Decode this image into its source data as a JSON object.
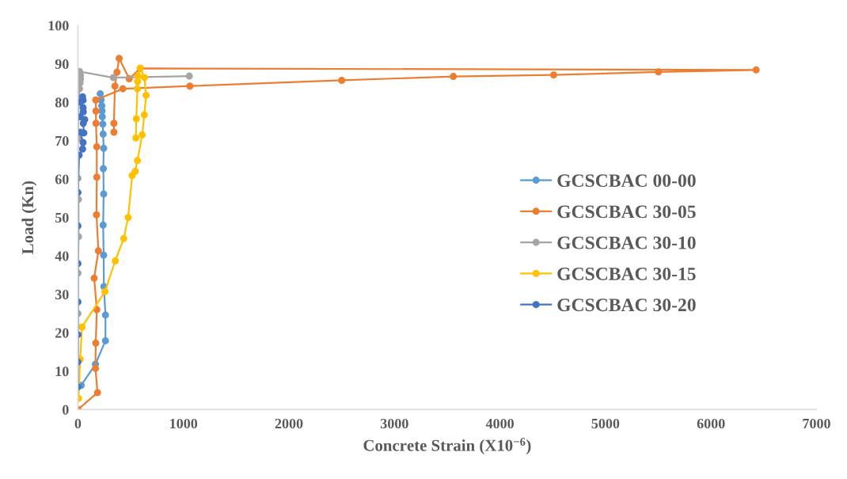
{
  "chart_data": {
    "type": "line",
    "xlabel": "Concrete Strain (X10$^{−6}$)",
    "ylabel": "Load (Kn)",
    "xlim": [
      0,
      7000
    ],
    "xticks": [
      0,
      1000,
      2000,
      3000,
      4000,
      5000,
      6000,
      7000
    ],
    "ylim": [
      0,
      100
    ],
    "yticks": [
      0,
      10,
      20,
      30,
      40,
      50,
      60,
      70,
      80,
      90,
      100
    ],
    "grid": false,
    "legend": "right",
    "marker": "circle",
    "line_style": "solid",
    "series": [
      {
        "name": "GCSCBAC 00-00",
        "color": "#5b9bd5",
        "x": [
          31,
          166,
          261,
          261,
          246,
          244,
          239,
          244,
          241,
          244,
          239,
          236,
          231,
          229,
          226,
          219,
          211
        ],
        "values": [
          6.3,
          11.8,
          17.9,
          24.6,
          32.0,
          40.2,
          48.0,
          56.1,
          62.7,
          68.0,
          71.7,
          74.3,
          76.2,
          77.7,
          79.1,
          80.6,
          82.2
        ]
      },
      {
        "name": "GCSCBAC 30-05",
        "color": "#ed7d31",
        "x": [
          0,
          186,
          166,
          169,
          179,
          154,
          194,
          176,
          179,
          179,
          171,
          171,
          169,
          426,
          1061,
          2500,
          3558,
          4509,
          5502,
          6428,
          591,
          486,
          391,
          370,
          351,
          341,
          341
        ],
        "values": [
          0,
          4.4,
          10.7,
          17.3,
          26.0,
          34.2,
          41.3,
          50.7,
          60.5,
          68.4,
          74.5,
          77.7,
          80.6,
          83.5,
          84.2,
          85.7,
          86.7,
          87.1,
          87.9,
          88.4,
          88.8,
          86.1,
          91.4,
          87.8,
          84.2,
          74.5,
          72.2
        ]
      },
      {
        "name": "GCSCBAC 30-10",
        "color": "#a5a5a5",
        "x": [
          0,
          0,
          0,
          6,
          5,
          0,
          0,
          5,
          5,
          15,
          20,
          24,
          24,
          15,
          336,
          1056
        ],
        "values": [
          13,
          25,
          35.5,
          45,
          54.7,
          60.2,
          70.5,
          76.2,
          80,
          83.5,
          85,
          86,
          87,
          88,
          86.4,
          86.8
        ]
      },
      {
        "name": "GCSCBAC 30-15",
        "color": "#ffc000",
        "x": [
          6,
          21,
          39,
          256,
          354,
          434,
          476,
          514,
          543,
          564,
          609,
          629,
          646,
          631,
          591,
          569,
          566,
          564,
          554,
          549
        ],
        "values": [
          2.9,
          13.1,
          21.5,
          30.7,
          38.7,
          44.5,
          50.0,
          60.9,
          62.0,
          64.8,
          71.5,
          76.7,
          81.8,
          86.4,
          88.9,
          86.9,
          85.4,
          83.5,
          75.7,
          70.7
        ]
      },
      {
        "name": "GCSCBAC 30-20",
        "color": "#4472c4",
        "x": [
          0,
          0,
          0,
          0,
          0,
          0,
          0,
          11,
          44,
          49,
          21,
          56,
          51,
          64,
          21,
          51,
          49,
          21,
          49,
          44
        ],
        "values": [
          5.9,
          12.4,
          19.5,
          28,
          38,
          47.8,
          56.5,
          66.2,
          67.8,
          69.5,
          72.2,
          72.0,
          74.5,
          75.5,
          76.2,
          77.5,
          78.6,
          80.0,
          80.5,
          81.4
        ]
      }
    ]
  }
}
